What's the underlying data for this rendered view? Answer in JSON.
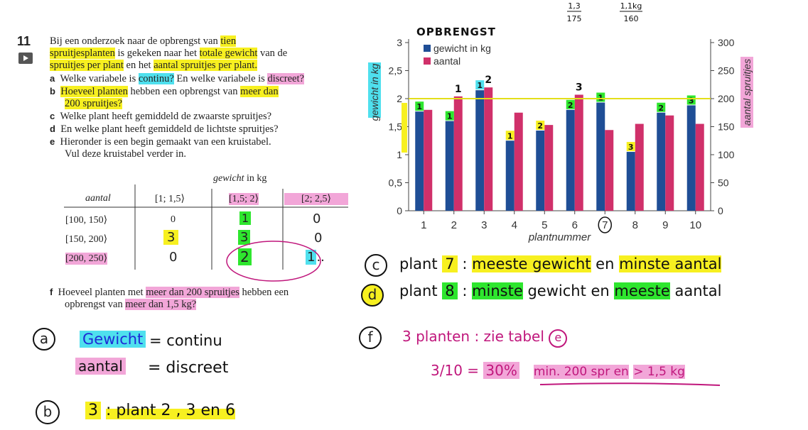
{
  "question": {
    "number": "11",
    "intro": {
      "l1a": "Bij een onderzoek naar de opbrengst van ",
      "l1b": "tien",
      "l2a": "spruitjesplanten",
      "l2b": " is gekeken naar het ",
      "l2c": "totale gewicht",
      "l2d": " van de",
      "l3a": "spruitjes per plant",
      "l3b": " en het ",
      "l3c": "aantal spruitjes per plant."
    },
    "items": [
      {
        "letter": "a",
        "t1": "Welke variabele is ",
        "t2": "continu?",
        "t3": " En welke variabele is ",
        "t4": "discreet?"
      },
      {
        "letter": "b",
        "t1": "Hoeveel planten",
        "t2": " hebben een opbrengst van ",
        "t3": "meer dan",
        "t4": "200 spruitjes?"
      },
      {
        "letter": "c",
        "t1": "Welke plant heeft gemiddeld de zwaarste spruitjes?"
      },
      {
        "letter": "d",
        "t1": "En welke plant heeft gemiddeld de lichtste spruitjes?"
      },
      {
        "letter": "e",
        "t1": "Hieronder is een begin gemaakt van een kruistabel.",
        "t2": "Vul deze kruistabel verder in."
      }
    ],
    "f": {
      "letter": "f",
      "t1": "Hoeveel planten met ",
      "t2": "meer dan 200 spruitjes",
      "t3": " hebben een",
      "t4": "opbrengst van ",
      "t5": "meer dan 1,5 kg?"
    }
  },
  "crosstab": {
    "header_gewicht": "gewicht",
    "header_unit": " in kg",
    "row_header": "aantal",
    "cols": [
      "[1; 1,5⟩",
      "[1,5; 2⟩",
      "[2; 2,5⟩"
    ],
    "rows": [
      {
        "label": "[100, 150⟩",
        "cells": [
          "0",
          "1",
          "0"
        ]
      },
      {
        "label": "[150, 200⟩",
        "cells": [
          "3",
          "3",
          "0"
        ]
      },
      {
        "label": "[200, 250⟩",
        "cells": [
          "0",
          "2",
          "1"
        ]
      }
    ]
  },
  "chart_data": {
    "type": "bar",
    "title": "OPBRENGST",
    "xlabel": "plantnummer",
    "ylabel_left": "gewicht in kg",
    "ylabel_right": "aantal spruitjes",
    "categories": [
      "1",
      "2",
      "3",
      "4",
      "5",
      "6",
      "7",
      "8",
      "9",
      "10"
    ],
    "ylim_left": [
      0,
      3
    ],
    "ylim_right": [
      0,
      300
    ],
    "left_ticks": [
      "0",
      "0,5",
      "1",
      "1,5",
      "2",
      "2,5",
      "3"
    ],
    "right_ticks": [
      "0",
      "50",
      "100",
      "150",
      "200",
      "250",
      "300"
    ],
    "legend_placement": "top-left",
    "series": [
      {
        "name": "gewicht in kg",
        "axis": "left",
        "color": "#1f4e96",
        "values": [
          1.77,
          1.6,
          2.15,
          1.25,
          1.43,
          1.8,
          1.93,
          1.05,
          1.75,
          1.88
        ]
      },
      {
        "name": "aantal",
        "axis": "right",
        "color": "#d0306a",
        "values": [
          180,
          204,
          220,
          175,
          153,
          207,
          144,
          155,
          170,
          155
        ]
      }
    ],
    "reference_line_right": 200,
    "annotations": {
      "bar_marks": [
        "1",
        "1",
        "1",
        "1",
        "2",
        "2",
        "1",
        "3",
        "2",
        "3"
      ],
      "aantal_marks": [
        "",
        "1",
        "2",
        "",
        "",
        "3",
        "",
        "",
        "",
        ""
      ],
      "fractions": [
        "1,3 / 175",
        "1,1kg / 160"
      ]
    }
  },
  "handwriting": {
    "a_label": "a",
    "a_gewicht": "Gewicht",
    "a_gewicht_val": "= continu",
    "a_aantal": "aantal",
    "a_aantal_val": "= discreet",
    "b_label": "b",
    "b_text1": "3",
    "b_text2": ": plant 2 , 3 en 6",
    "c_label": "c",
    "c_text1": "plant ",
    "c_num": "7",
    "c_text2": " : ",
    "c_hl1": "meeste gewicht",
    "c_text3": " en ",
    "c_hl2": "minste aantal",
    "d_label": "d",
    "d_text1": "plant ",
    "d_num": "8",
    "d_text2": " : ",
    "d_hl1": "minste",
    "d_text3": " gewicht en ",
    "d_hl2": "meeste",
    "d_text4": " aantal",
    "f_label": "f",
    "f_text": "3 planten : zie tabel",
    "f_e": "e",
    "f_frac": "3/10 = ",
    "f_pct": "30%",
    "f_min": "min. 200 spr en",
    "f_kg": "> 1,5 kg"
  }
}
